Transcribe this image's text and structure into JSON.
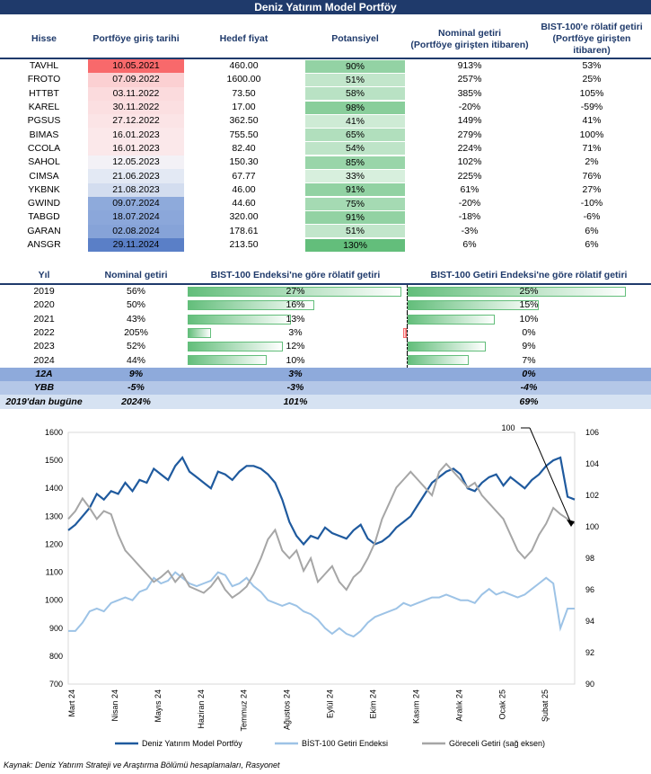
{
  "title": "Deniz Yatırım Model Portföy",
  "portfolio": {
    "headers": [
      "Hisse",
      "Portföye giriş tarihi",
      "Hedef fiyat",
      "Potansiyel",
      "Nominal getiri\n(Portföye girişten itibaren)",
      "BIST-100'e rölatif getiri\n(Portföye girişten itibaren)"
    ],
    "rows": [
      {
        "ticker": "TAVHL",
        "date": "10.05.2021",
        "target": "460.00",
        "potential": "90%",
        "potential_value": 90,
        "nominal": "913%",
        "relative": "53%",
        "date_color": "#f8696b"
      },
      {
        "ticker": "FROTO",
        "date": "07.09.2022",
        "target": "1600.00",
        "potential": "51%",
        "potential_value": 51,
        "nominal": "257%",
        "relative": "25%",
        "date_color": "#fbd0d2"
      },
      {
        "ticker": "HTTBT",
        "date": "03.11.2022",
        "target": "73.50",
        "potential": "58%",
        "potential_value": 58,
        "nominal": "385%",
        "relative": "105%",
        "date_color": "#fbdbdd"
      },
      {
        "ticker": "KAREL",
        "date": "30.11.2022",
        "target": "17.00",
        "potential": "98%",
        "potential_value": 98,
        "nominal": "-20%",
        "relative": "-59%",
        "date_color": "#fbdfe1"
      },
      {
        "ticker": "PGSUS",
        "date": "27.12.2022",
        "target": "362.50",
        "potential": "41%",
        "potential_value": 41,
        "nominal": "149%",
        "relative": "41%",
        "date_color": "#fbe4e6"
      },
      {
        "ticker": "BIMAS",
        "date": "16.01.2023",
        "target": "755.50",
        "potential": "65%",
        "potential_value": 65,
        "nominal": "279%",
        "relative": "100%",
        "date_color": "#fbe8ea"
      },
      {
        "ticker": "CCOLA",
        "date": "16.01.2023",
        "target": "82.40",
        "potential": "54%",
        "potential_value": 54,
        "nominal": "224%",
        "relative": "71%",
        "date_color": "#fbe8ea"
      },
      {
        "ticker": "SAHOL",
        "date": "12.05.2023",
        "target": "150.30",
        "potential": "85%",
        "potential_value": 85,
        "nominal": "102%",
        "relative": "2%",
        "date_color": "#f3f1f6"
      },
      {
        "ticker": "CIMSA",
        "date": "21.06.2023",
        "target": "67.77",
        "potential": "33%",
        "potential_value": 33,
        "nominal": "225%",
        "relative": "76%",
        "date_color": "#e3e9f4"
      },
      {
        "ticker": "YKBNK",
        "date": "21.08.2023",
        "target": "46.00",
        "potential": "91%",
        "potential_value": 91,
        "nominal": "61%",
        "relative": "27%",
        "date_color": "#d3ddef"
      },
      {
        "ticker": "GWIND",
        "date": "09.07.2024",
        "target": "44.60",
        "potential": "75%",
        "potential_value": 75,
        "nominal": "-20%",
        "relative": "-10%",
        "date_color": "#8eaadb"
      },
      {
        "ticker": "TABGD",
        "date": "18.07.2024",
        "target": "320.00",
        "potential": "91%",
        "potential_value": 91,
        "nominal": "-18%",
        "relative": "-6%",
        "date_color": "#8ba7da"
      },
      {
        "ticker": "GARAN",
        "date": "02.08.2024",
        "target": "178.61",
        "potential": "51%",
        "potential_value": 51,
        "nominal": "-3%",
        "relative": "6%",
        "date_color": "#86a3d8"
      },
      {
        "ticker": "ANSGR",
        "date": "29.11.2024",
        "target": "213.50",
        "potential": "130%",
        "potential_value": 130,
        "nominal": "6%",
        "relative": "6%",
        "date_color": "#5a7fc7"
      }
    ]
  },
  "performance": {
    "headers": [
      "Yıl",
      "Nominal getiri",
      "BIST-100 Endeksi'ne göre rölatif getiri",
      "BIST-100 Getiri Endeksi'ne göre rölatif getiri"
    ],
    "rows": [
      {
        "year": "2019",
        "nominal": "56%",
        "rel100": "27%",
        "rel100_value": 27,
        "relgetiri": "25%",
        "relgetiri_value": 25
      },
      {
        "year": "2020",
        "nominal": "50%",
        "rel100": "16%",
        "rel100_value": 16,
        "relgetiri": "15%",
        "relgetiri_value": 15
      },
      {
        "year": "2021",
        "nominal": "43%",
        "rel100": "13%",
        "rel100_value": 13,
        "relgetiri": "10%",
        "relgetiri_value": 10
      },
      {
        "year": "2022",
        "nominal": "205%",
        "rel100": "3%",
        "rel100_value": 3,
        "relgetiri": "0%",
        "relgetiri_value": -0.5
      },
      {
        "year": "2023",
        "nominal": "52%",
        "rel100": "12%",
        "rel100_value": 12,
        "relgetiri": "9%",
        "relgetiri_value": 9
      },
      {
        "year": "2024",
        "nominal": "44%",
        "rel100": "10%",
        "rel100_value": 10,
        "relgetiri": "7%",
        "relgetiri_value": 7
      }
    ],
    "summary": [
      {
        "label": "12A",
        "nominal": "9%",
        "rel100": "3%",
        "relgetiri": "0%"
      },
      {
        "label": "YBB",
        "nominal": "-5%",
        "rel100": "-3%",
        "relgetiri": "-4%"
      },
      {
        "label": "2019'dan bugüne",
        "nominal": "2024%",
        "rel100": "101%",
        "relgetiri": "69%"
      }
    ]
  },
  "chart_data": {
    "type": "line",
    "x_ticks": [
      "Mart 24",
      "Nisan 24",
      "Mayıs 24",
      "Haziran 24",
      "Temmuz 24",
      "Ağustos 24",
      "Eylül 24",
      "Ekim 24",
      "Kasım 24",
      "Aralık 24",
      "Ocak 25",
      "Şubat 25"
    ],
    "y_left": {
      "min": 700,
      "max": 1600,
      "step": 100
    },
    "y_right": {
      "min": 90,
      "max": 106,
      "step": 2
    },
    "annotation": "100",
    "series": [
      {
        "name": "Deniz Yatırım Model Portföy",
        "axis": "left",
        "color": "#1f5a9e",
        "values": [
          1250,
          1270,
          1300,
          1330,
          1380,
          1360,
          1390,
          1380,
          1420,
          1390,
          1430,
          1420,
          1470,
          1450,
          1430,
          1480,
          1510,
          1460,
          1440,
          1420,
          1400,
          1460,
          1450,
          1430,
          1460,
          1480,
          1480,
          1470,
          1450,
          1420,
          1360,
          1280,
          1230,
          1200,
          1230,
          1220,
          1260,
          1240,
          1230,
          1220,
          1250,
          1270,
          1220,
          1200,
          1210,
          1230,
          1260,
          1280,
          1300,
          1340,
          1380,
          1420,
          1440,
          1460,
          1470,
          1450,
          1400,
          1390,
          1420,
          1440,
          1450,
          1410,
          1440,
          1420,
          1400,
          1430,
          1450,
          1480,
          1500,
          1510,
          1370,
          1360
        ]
      },
      {
        "name": "BİST-100 Getiri Endeksi",
        "axis": "left",
        "color": "#9dc3e6",
        "values": [
          890,
          890,
          920,
          960,
          970,
          960,
          990,
          1000,
          1010,
          1000,
          1030,
          1040,
          1080,
          1060,
          1070,
          1100,
          1080,
          1060,
          1050,
          1060,
          1070,
          1100,
          1090,
          1050,
          1060,
          1080,
          1050,
          1030,
          1000,
          990,
          980,
          990,
          980,
          960,
          950,
          930,
          900,
          880,
          900,
          880,
          870,
          890,
          920,
          940,
          950,
          960,
          970,
          990,
          980,
          990,
          1000,
          1010,
          1010,
          1020,
          1010,
          1000,
          1000,
          990,
          1020,
          1040,
          1020,
          1030,
          1020,
          1010,
          1020,
          1040,
          1060,
          1080,
          1060,
          900,
          970,
          970
        ]
      },
      {
        "name": "Göreceli Getiri (sağ eksen)",
        "axis": "right",
        "color": "#a6a6a6",
        "values": [
          100.5,
          101.0,
          101.8,
          101.2,
          100.5,
          101.0,
          100.8,
          99.5,
          98.5,
          98.0,
          97.5,
          97.0,
          96.5,
          96.8,
          97.2,
          96.5,
          97.0,
          96.2,
          96.0,
          95.8,
          96.2,
          96.8,
          96.0,
          95.5,
          95.8,
          96.2,
          97.0,
          98.0,
          99.2,
          99.8,
          98.5,
          98.0,
          98.5,
          97.2,
          98.0,
          96.5,
          97.0,
          97.5,
          96.5,
          96.0,
          96.8,
          97.2,
          98.0,
          99.0,
          100.5,
          101.5,
          102.5,
          103.0,
          103.5,
          103.0,
          102.5,
          102.0,
          103.5,
          104.0,
          103.5,
          103.0,
          102.5,
          102.8,
          102.0,
          101.5,
          101.0,
          100.5,
          99.5,
          98.5,
          98.0,
          98.5,
          99.5,
          100.2,
          101.2,
          100.8,
          100.5,
          100.2
        ]
      }
    ]
  },
  "source": "Kaynak: Deniz Yatırım Strateji ve Araştırma Bölümü hesaplamaları, Rasyonet"
}
